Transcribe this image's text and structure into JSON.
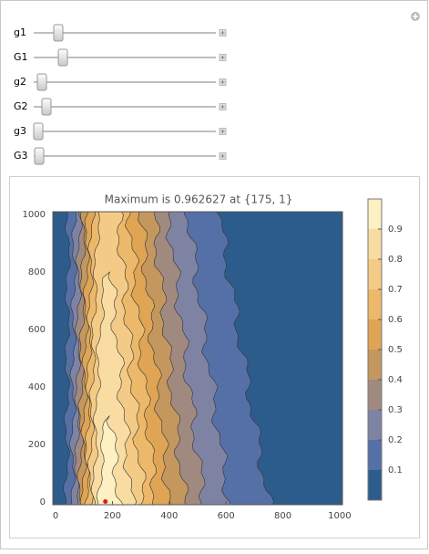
{
  "controls": [
    {
      "label": "g1"
    },
    {
      "label": "G1"
    },
    {
      "label": "g2"
    },
    {
      "label": "G2"
    },
    {
      "label": "g3"
    },
    {
      "label": "G3"
    }
  ],
  "chart_data": {
    "type": "contour",
    "title": "Maximum is 0.962627 at {175, 1}",
    "xlim": [
      -10,
      1010
    ],
    "ylim": [
      -10,
      1010
    ],
    "xticks": [
      0,
      200,
      400,
      600,
      800,
      1000
    ],
    "yticks": [
      0,
      200,
      400,
      600,
      800,
      1000
    ],
    "levels": [
      0,
      0.1,
      0.2,
      0.3,
      0.4,
      0.5,
      0.6,
      0.7,
      0.8,
      0.9
    ],
    "colors": [
      "#2b5c8c",
      "#5570a6",
      "#7f83a3",
      "#a08a80",
      "#c4975f",
      "#dfa555",
      "#ecb96a",
      "#f4cb86",
      "#f8dca2",
      "#fdf0c2"
    ],
    "zlim": [
      0,
      1
    ],
    "zticks": [
      0.1,
      0.2,
      0.3,
      0.4,
      0.5,
      0.6,
      0.7,
      0.8,
      0.9
    ],
    "max_point": [
      175,
      1
    ],
    "max_color": "#d62020"
  }
}
